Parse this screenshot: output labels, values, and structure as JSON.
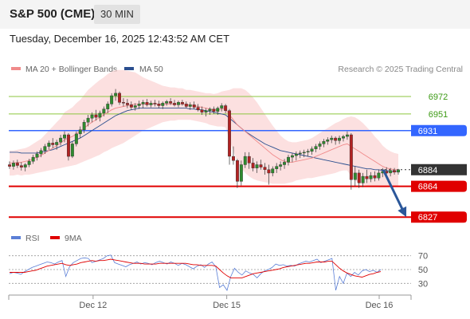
{
  "header": {
    "title": "S&P 500 (CME)",
    "timeframe": "30 MIN"
  },
  "datetime": "Tuesday, December 16, 2025 12:43:52 AM CET",
  "legend": {
    "items": [
      {
        "label": "MA 20 + Bollinger Bands",
        "color": "#f08a8a"
      },
      {
        "label": "MA 50",
        "color": "#2b4f8f"
      }
    ],
    "copyright": "Research © 2025 Trading Central"
  },
  "rsi_legend": {
    "items": [
      {
        "label": "RSI",
        "color": "#5b7fd6"
      },
      {
        "label": "9MA",
        "color": "#e00000"
      }
    ]
  },
  "chart_data": {
    "type": "candlestick",
    "ylim": [
      6808,
      6996
    ],
    "x_ticks": [
      {
        "label": "Dec 12",
        "index": 40
      },
      {
        "label": "Dec 15",
        "index": 104
      },
      {
        "label": "Dec 16",
        "index": 177
      }
    ],
    "levels": [
      {
        "value": 6972,
        "label": "6972",
        "kind": "resistance-minor",
        "color": "#8dc63f",
        "text_color": "#3c9a14"
      },
      {
        "value": 6951,
        "label": "6951",
        "kind": "resistance-minor",
        "color": "#8dc63f",
        "text_color": "#3c9a14"
      },
      {
        "value": 6931,
        "label": "6931",
        "kind": "resistance",
        "color": "#3366ff"
      },
      {
        "value": 6884,
        "label": "6884",
        "kind": "last-price",
        "color": "#333333"
      },
      {
        "value": 6864,
        "label": "6864",
        "kind": "support",
        "color": "#e00000"
      },
      {
        "value": 6827,
        "label": "6827",
        "kind": "support",
        "color": "#e00000"
      }
    ],
    "candles": [
      [
        6890,
        6894,
        6885,
        6888
      ],
      [
        6888,
        6895,
        6884,
        6892
      ],
      [
        6892,
        6896,
        6886,
        6889
      ],
      [
        6889,
        6893,
        6883,
        6887
      ],
      [
        6887,
        6892,
        6882,
        6890
      ],
      [
        6890,
        6897,
        6887,
        6894
      ],
      [
        6894,
        6902,
        6891,
        6899
      ],
      [
        6899,
        6906,
        6895,
        6903
      ],
      [
        6903,
        6910,
        6899,
        6907
      ],
      [
        6907,
        6915,
        6903,
        6912
      ],
      [
        6912,
        6919,
        6908,
        6916
      ],
      [
        6916,
        6922,
        6910,
        6914
      ],
      [
        6914,
        6920,
        6908,
        6917
      ],
      [
        6917,
        6926,
        6913,
        6922
      ],
      [
        6922,
        6930,
        6917,
        6926
      ],
      [
        6926,
        6928,
        6895,
        6900
      ],
      [
        6900,
        6918,
        6898,
        6915
      ],
      [
        6915,
        6930,
        6912,
        6927
      ],
      [
        6927,
        6936,
        6922,
        6932
      ],
      [
        6932,
        6944,
        6928,
        6941
      ],
      [
        6941,
        6950,
        6936,
        6946
      ],
      [
        6946,
        6953,
        6941,
        6950
      ],
      [
        6950,
        6956,
        6943,
        6947
      ],
      [
        6947,
        6955,
        6942,
        6952
      ],
      [
        6952,
        6960,
        6948,
        6957
      ],
      [
        6957,
        6966,
        6952,
        6963
      ],
      [
        6963,
        6976,
        6960,
        6973
      ],
      [
        6973,
        6981,
        6967,
        6976
      ],
      [
        6976,
        6978,
        6962,
        6965
      ],
      [
        6965,
        6970,
        6960,
        6964
      ],
      [
        6964,
        6969,
        6958,
        6962
      ],
      [
        6962,
        6966,
        6956,
        6959
      ],
      [
        6959,
        6964,
        6955,
        6961
      ],
      [
        6961,
        6967,
        6957,
        6963
      ],
      [
        6963,
        6968,
        6958,
        6965
      ],
      [
        6965,
        6969,
        6960,
        6962
      ],
      [
        6962,
        6967,
        6959,
        6964
      ],
      [
        6964,
        6968,
        6960,
        6963
      ],
      [
        6963,
        6967,
        6958,
        6961
      ],
      [
        6961,
        6966,
        6957,
        6964
      ],
      [
        6964,
        6968,
        6961,
        6966
      ],
      [
        6966,
        6970,
        6962,
        6964
      ],
      [
        6964,
        6968,
        6960,
        6962
      ],
      [
        6962,
        6967,
        6959,
        6965
      ],
      [
        6965,
        6968,
        6961,
        6963
      ],
      [
        6963,
        6966,
        6958,
        6960
      ],
      [
        6960,
        6965,
        6956,
        6962
      ],
      [
        6962,
        6966,
        6957,
        6959
      ],
      [
        6959,
        6963,
        6954,
        6956
      ],
      [
        6956,
        6960,
        6950,
        6953
      ],
      [
        6953,
        6958,
        6948,
        6955
      ],
      [
        6955,
        6959,
        6950,
        6957
      ],
      [
        6957,
        6960,
        6951,
        6954
      ],
      [
        6954,
        6960,
        6950,
        6958
      ],
      [
        6958,
        6964,
        6954,
        6961
      ],
      [
        6961,
        6963,
        6952,
        6955
      ],
      [
        6955,
        6957,
        6890,
        6900
      ],
      [
        6900,
        6912,
        6890,
        6895
      ],
      [
        6895,
        6897,
        6862,
        6870
      ],
      [
        6870,
        6895,
        6865,
        6890
      ],
      [
        6890,
        6905,
        6886,
        6900
      ],
      [
        6900,
        6905,
        6885,
        6892
      ],
      [
        6892,
        6898,
        6882,
        6886
      ],
      [
        6886,
        6894,
        6880,
        6890
      ],
      [
        6890,
        6896,
        6884,
        6887
      ],
      [
        6887,
        6892,
        6878,
        6884
      ],
      [
        6884,
        6890,
        6866,
        6880
      ],
      [
        6880,
        6888,
        6876,
        6885
      ],
      [
        6885,
        6892,
        6880,
        6888
      ],
      [
        6888,
        6894,
        6883,
        6890
      ],
      [
        6890,
        6897,
        6885,
        6893
      ],
      [
        6893,
        6902,
        6889,
        6899
      ],
      [
        6899,
        6904,
        6893,
        6901
      ],
      [
        6901,
        6906,
        6895,
        6903
      ],
      [
        6903,
        6907,
        6898,
        6904
      ],
      [
        6904,
        6908,
        6899,
        6905
      ],
      [
        6905,
        6909,
        6900,
        6906
      ],
      [
        6906,
        6912,
        6902,
        6909
      ],
      [
        6909,
        6915,
        6905,
        6912
      ],
      [
        6912,
        6918,
        6908,
        6915
      ],
      [
        6915,
        6921,
        6911,
        6918
      ],
      [
        6918,
        6923,
        6914,
        6920
      ],
      [
        6920,
        6925,
        6916,
        6922
      ],
      [
        6922,
        6924,
        6914,
        6919
      ],
      [
        6919,
        6925,
        6915,
        6922
      ],
      [
        6922,
        6926,
        6918,
        6924
      ],
      [
        6924,
        6930,
        6920,
        6926
      ],
      [
        6926,
        6928,
        6860,
        6872
      ],
      [
        6872,
        6888,
        6864,
        6880
      ],
      [
        6880,
        6884,
        6862,
        6868
      ],
      [
        6868,
        6880,
        6863,
        6876
      ],
      [
        6876,
        6884,
        6868,
        6873
      ],
      [
        6873,
        6881,
        6869,
        6877
      ],
      [
        6877,
        6882,
        6870,
        6874
      ],
      [
        6874,
        6884,
        6871,
        6880
      ],
      [
        6880,
        6886,
        6875,
        6882
      ],
      [
        6882,
        6887,
        6876,
        6880
      ],
      [
        6880,
        6886,
        6876,
        6883
      ],
      [
        6883,
        6886,
        6878,
        6881
      ],
      [
        6881,
        6885,
        6878,
        6884
      ]
    ],
    "ma20": [
      6892,
      6892,
      6893,
      6893,
      6894,
      6895,
      6897,
      6899,
      6901,
      6904,
      6907,
      6910,
      6913,
      6916,
      6920,
      6922,
      6924,
      6927,
      6930,
      6934,
      6938,
      6941,
      6944,
      6947,
      6950,
      6953,
      6956,
      6958,
      6959,
      6960,
      6961,
      6962,
      6963,
      6963,
      6963,
      6963,
      6963,
      6963,
      6963,
      6963,
      6963,
      6963,
      6963,
      6963,
      6963,
      6962,
      6962,
      6961,
      6960,
      6959,
      6958,
      6957,
      6956,
      6956,
      6957,
      6957,
      6950,
      6944,
      6938,
      6934,
      6930,
      6926,
      6922,
      6918,
      6914,
      6910,
      6906,
      6902,
      6899,
      6896,
      6894,
      6893,
      6893,
      6894,
      6895,
      6896,
      6897,
      6898,
      6900,
      6902,
      6904,
      6906,
      6908,
      6910,
      6912,
      6914,
      6915,
      6912,
      6909,
      6906,
      6903,
      6900,
      6897,
      6894,
      6891,
      6888,
      6886,
      6885,
      6884,
      6884
    ],
    "ma50": [
      6905,
      6905,
      6905,
      6904,
      6904,
      6904,
      6904,
      6904,
      6905,
      6906,
      6907,
      6908,
      6910,
      6912,
      6914,
      6916,
      6918,
      6920,
      6922,
      6925,
      6928,
      6931,
      6934,
      6937,
      6940,
      6943,
      6946,
      6949,
      6951,
      6953,
      6955,
      6956,
      6957,
      6958,
      6958,
      6958,
      6958,
      6958,
      6958,
      6958,
      6958,
      6958,
      6958,
      6958,
      6958,
      6958,
      6957,
      6957,
      6956,
      6956,
      6955,
      6954,
      6953,
      6952,
      6951,
      6950,
      6946,
      6942,
      6938,
      6934,
      6930,
      6927,
      6924,
      6921,
      6918,
      6915,
      6913,
      6911,
      6909,
      6907,
      6906,
      6905,
      6904,
      6903,
      6902,
      6901,
      6900,
      6899,
      6898,
      6897,
      6896,
      6895,
      6894,
      6893,
      6892,
      6891,
      6890,
      6889,
      6888,
      6887,
      6886,
      6885,
      6885,
      6884,
      6884,
      6883,
      6883,
      6882,
      6882,
      6882
    ],
    "bb_width": [
      15,
      15,
      15,
      16,
      16,
      17,
      18,
      19,
      20,
      22,
      24,
      26,
      28,
      30,
      33,
      34,
      35,
      37,
      38,
      40,
      42,
      43,
      44,
      45,
      45,
      46,
      46,
      46,
      45,
      44,
      42,
      40,
      38,
      35,
      32,
      30,
      28,
      26,
      24,
      22,
      21,
      20,
      20,
      19,
      19,
      18,
      18,
      18,
      18,
      18,
      18,
      19,
      19,
      20,
      21,
      22,
      30,
      38,
      44,
      48,
      50,
      50,
      49,
      47,
      44,
      41,
      38,
      35,
      32,
      29,
      27,
      25,
      24,
      23,
      23,
      23,
      23,
      24,
      25,
      26,
      27,
      28,
      29,
      30,
      30,
      31,
      32,
      36,
      38,
      38,
      37,
      35,
      33,
      30,
      28,
      25,
      23,
      21,
      20,
      19
    ],
    "projection": {
      "from": 6884,
      "to": 6827
    },
    "rsi": {
      "levels": [
        70,
        50,
        30
      ],
      "ylim": [
        20,
        80
      ],
      "values": [
        44,
        46,
        45,
        43,
        47,
        50,
        53,
        55,
        57,
        59,
        61,
        60,
        58,
        61,
        63,
        40,
        54,
        60,
        63,
        66,
        67,
        66,
        60,
        62,
        64,
        66,
        70,
        71,
        60,
        58,
        56,
        54,
        57,
        59,
        61,
        58,
        60,
        59,
        57,
        60,
        62,
        60,
        58,
        61,
        59,
        56,
        59,
        57,
        54,
        51,
        55,
        57,
        53,
        58,
        61,
        54,
        24,
        28,
        20,
        40,
        52,
        46,
        42,
        48,
        45,
        43,
        38,
        44,
        48,
        50,
        53,
        58,
        56,
        57,
        55,
        56,
        55,
        58,
        60,
        62,
        61,
        63,
        65,
        60,
        62,
        64,
        66,
        20,
        40,
        30,
        45,
        40,
        46,
        42,
        48,
        50,
        47,
        49,
        46,
        50
      ],
      "ma9": [
        46,
        46,
        46,
        46,
        46,
        47,
        48,
        49,
        51,
        53,
        55,
        56,
        57,
        58,
        59,
        57,
        56,
        57,
        58,
        60,
        61,
        62,
        63,
        62,
        63,
        63,
        64,
        65,
        64,
        63,
        62,
        61,
        60,
        59,
        59,
        59,
        58,
        58,
        58,
        58,
        59,
        59,
        59,
        59,
        59,
        59,
        59,
        59,
        58,
        57,
        57,
        56,
        56,
        56,
        56,
        55,
        50,
        45,
        41,
        38,
        38,
        38,
        38,
        40,
        42,
        44,
        45,
        46,
        47,
        48,
        49,
        50,
        51,
        53,
        54,
        55,
        56,
        57,
        58,
        59,
        59,
        60,
        61,
        61,
        61,
        62,
        62,
        57,
        52,
        48,
        45,
        43,
        41,
        40,
        39,
        41,
        43,
        44,
        46,
        47
      ]
    }
  }
}
